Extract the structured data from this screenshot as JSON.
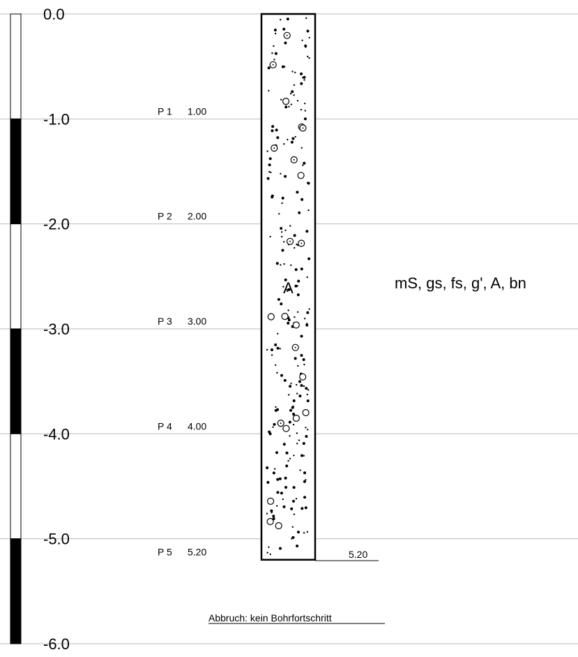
{
  "depth_scale": {
    "ticks": [
      "0.0",
      "-1.0",
      "-2.0",
      "-3.0",
      "-4.0",
      "-5.0",
      "-6.0"
    ],
    "segments": [
      "white",
      "black",
      "white",
      "black",
      "white",
      "black"
    ]
  },
  "samples": [
    {
      "name": "P 1",
      "depth": "1.00"
    },
    {
      "name": "P 2",
      "depth": "2.00"
    },
    {
      "name": "P 3",
      "depth": "3.00"
    },
    {
      "name": "P 4",
      "depth": "4.00"
    },
    {
      "name": "P 5",
      "depth": "5.20"
    }
  ],
  "layer": {
    "code": "A",
    "description": "mS, gs, fs, g', A, bn",
    "bottom_depth": "5.20",
    "top_value": 0.0,
    "bottom_value": 5.2
  },
  "termination_note": "Abbruch: kein Bohrfortschritt",
  "colors": {
    "grid": "#bbbbbb",
    "ink": "#000000"
  }
}
